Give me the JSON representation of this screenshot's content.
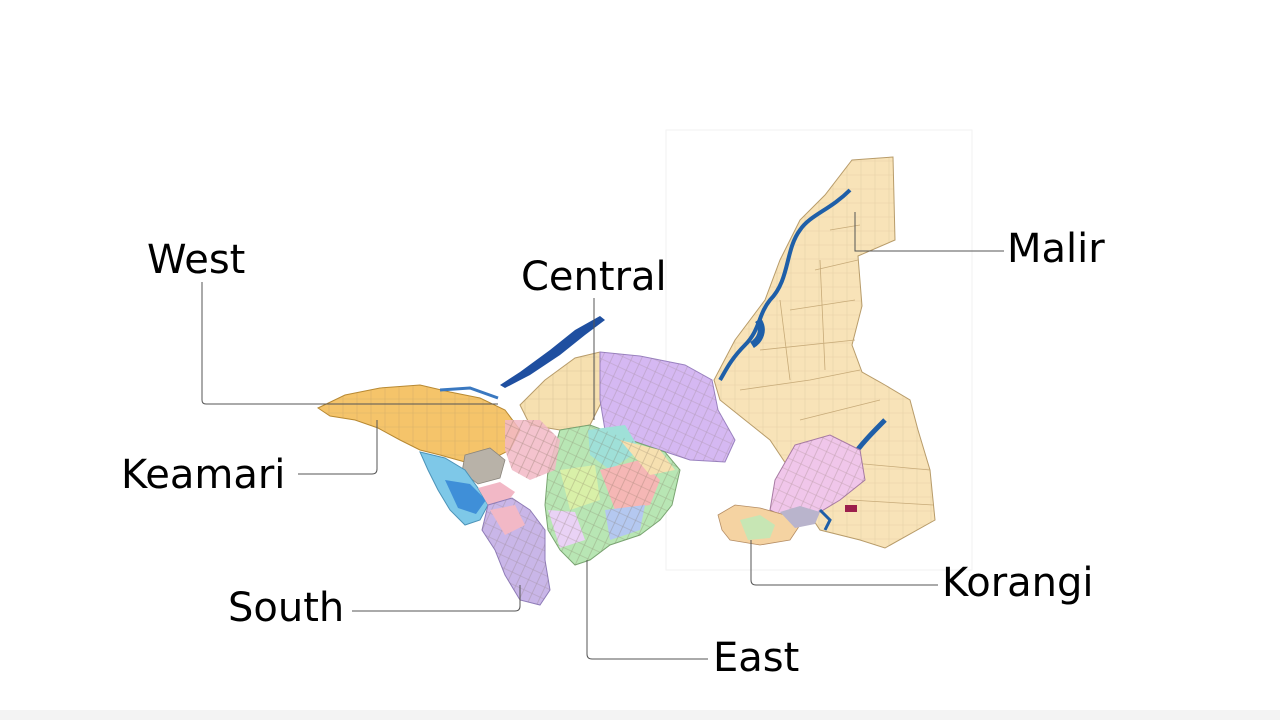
{
  "map": {
    "districts": [
      {
        "id": "west",
        "name": "West",
        "color": "#f5c46a"
      },
      {
        "id": "central",
        "name": "Central",
        "color": "#f6e0b0"
      },
      {
        "id": "malir",
        "name": "Malir",
        "color": "#f8e3b8"
      },
      {
        "id": "keamari",
        "name": "Keamari",
        "color": "#7ec8e8"
      },
      {
        "id": "south",
        "name": "South",
        "color": "#c9b6e8"
      },
      {
        "id": "east",
        "name": "East",
        "color": "#b8e6b4"
      },
      {
        "id": "korangi",
        "name": "Korangi",
        "color": "#f0c6ea"
      }
    ],
    "colors": {
      "river": "#1f5fa8",
      "leader_line": "#555555",
      "road": "#8a7355",
      "purple_zone": "#d5b8f2",
      "pink_zone": "#f2b8c6",
      "gray_zone": "#b8b2a8"
    }
  }
}
